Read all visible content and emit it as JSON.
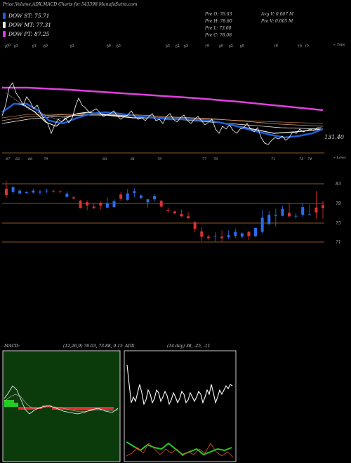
{
  "header": {
    "title": "Price,Volume,ADX,MACD Charts for 543398 MunafaSutra.com"
  },
  "legend": [
    {
      "label": "DOW ST: 75.71",
      "color": "#1f5fd6"
    },
    {
      "label": "DOW MT: 77.31",
      "color": "#e8e8e8"
    },
    {
      "label": "DOW PT: 87.25",
      "color": "#e040e0"
    }
  ],
  "quote": {
    "pre_o": "Pre   O: 76.63",
    "pre_h": "Pre   H: 78.80",
    "pre_l": "Pre   L: 73.00",
    "pre_c": "Pre   C: 78.08",
    "avg_v": "Avg V: 0.007 M",
    "pre_v": "Pre   V: 0.005 M"
  },
  "price_panel": {
    "top_tag": "« Tops",
    "low_tag": "« Lows",
    "last_value": "131.40",
    "top_labels": [
      "100",
      "83",
      "81",
      "80",
      "82",
      "88",
      "83",
      "83",
      "82",
      "83",
      "79",
      "80",
      "82",
      "80",
      "78",
      "76",
      "75"
    ],
    "low_labels": [
      "87",
      "82",
      "80",
      "79",
      "83",
      "81",
      "79",
      "77",
      "76",
      "71",
      "75",
      "74"
    ],
    "y_ticks": [
      "83",
      "79",
      "75",
      "71"
    ]
  },
  "macd_panel": {
    "label": "MACD:",
    "values": "(12,26,9) 76.03, 73.88, 0.15"
  },
  "adx_panel": {
    "label": "ADX",
    "values": "(14 day) 38, -25, -11"
  },
  "chart_data": {
    "type": "candlestick",
    "y_ticks": [
      83,
      79,
      75,
      71
    ],
    "candles": [
      [
        82.0,
        83.6,
        80.1,
        80.7
      ],
      [
        81.3,
        82.6,
        80.9,
        82.3
      ],
      [
        81.0,
        81.9,
        80.9,
        81.6
      ],
      [
        81.1,
        81.5,
        80.9,
        81.3
      ],
      [
        81.2,
        82.0,
        81.0,
        81.6
      ],
      [
        81.2,
        81.8,
        80.7,
        81.4
      ],
      [
        81.6,
        82.0,
        81.1,
        81.6
      ],
      [
        81.5,
        81.8,
        81.2,
        81.4
      ],
      [
        81.4,
        81.7,
        81.1,
        81.3
      ],
      [
        80.3,
        81.5,
        80.2,
        81.0
      ],
      [
        80.2,
        80.5,
        79.8,
        80.0
      ],
      [
        79.5,
        79.7,
        77.9,
        78.0
      ],
      [
        79.2,
        79.6,
        77.5,
        78.5
      ],
      [
        78.3,
        79.0,
        77.8,
        78.0
      ],
      [
        79.1,
        79.4,
        77.7,
        78.5
      ],
      [
        78.1,
        80.2,
        77.9,
        79.0
      ],
      [
        78.2,
        79.9,
        78.1,
        79.4
      ],
      [
        80.8,
        81.3,
        79.5,
        79.9
      ],
      [
        79.7,
        81.9,
        79.5,
        81.0
      ],
      [
        81.1,
        82.1,
        80.2,
        81.5
      ],
      [
        80.1,
        80.8,
        79.8,
        80.6
      ],
      [
        79.2,
        79.9,
        78.1,
        79.8
      ],
      [
        79.8,
        80.8,
        79.3,
        80.5
      ],
      [
        79.5,
        79.6,
        78.1,
        78.3
      ],
      [
        77.6,
        78.1,
        77.0,
        77.4
      ],
      [
        77.3,
        77.5,
        76.7,
        76.9
      ],
      [
        76.8,
        77.7,
        76.2,
        76.3
      ],
      [
        76.3,
        77.2,
        75.8,
        75.9
      ],
      [
        75.1,
        75.3,
        73.0,
        73.7
      ],
      [
        73.2,
        74.0,
        71.2,
        72.1
      ],
      [
        72.1,
        72.5,
        71.5,
        71.8
      ],
      [
        72.2,
        73.0,
        71.1,
        72.3
      ],
      [
        72.1,
        73.4,
        71.0,
        71.8
      ],
      [
        72.0,
        73.4,
        71.6,
        72.4
      ],
      [
        72.3,
        73.8,
        71.8,
        73.1
      ],
      [
        72.1,
        73.0,
        71.7,
        72.8
      ],
      [
        73.1,
        73.3,
        71.4,
        72.2
      ],
      [
        72.2,
        74.0,
        72.0,
        73.9
      ],
      [
        73.1,
        77.7,
        72.7,
        76.0
      ],
      [
        74.7,
        77.4,
        74.5,
        76.6
      ],
      [
        76.4,
        77.9,
        74.2,
        76.6
      ],
      [
        76.4,
        78.5,
        76.3,
        77.8
      ],
      [
        77.0,
        79.1,
        76.1,
        76.3
      ],
      [
        76.3,
        76.9,
        75.8,
        76.4
      ],
      [
        76.6,
        79.1,
        76.2,
        78.2
      ],
      [
        76.6,
        78.7,
        76.5,
        76.7
      ],
      [
        78.1,
        81.5,
        75.8,
        77.1
      ],
      [
        78.6,
        79.5,
        75.8,
        78.0
      ]
    ]
  }
}
